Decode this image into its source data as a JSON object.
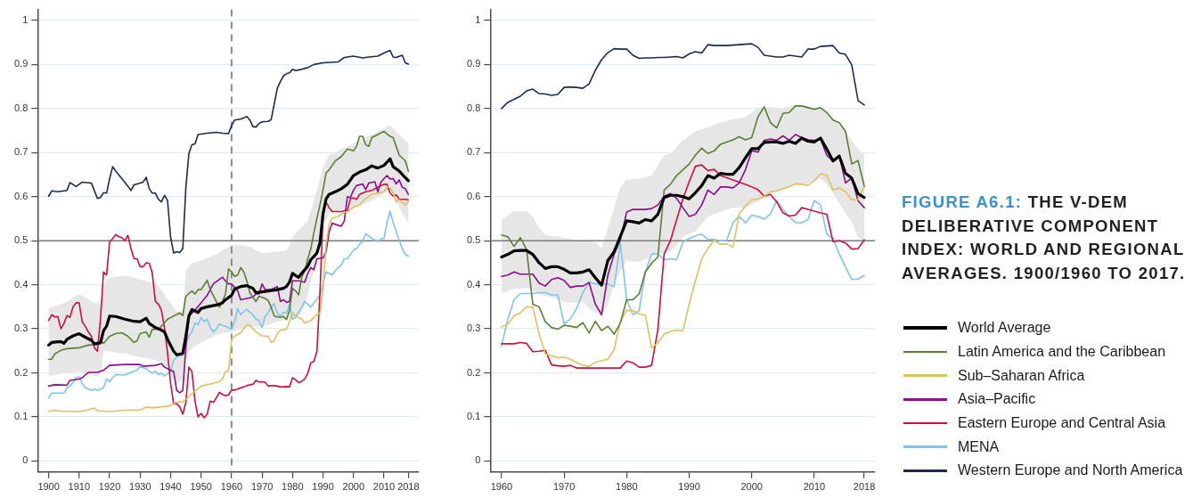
{
  "chart_data": [
    {
      "type": "line",
      "legend": "right",
      "xlim": [
        1896.4,
        2021.4
      ],
      "ylim": [
        -0.025,
        1.025
      ],
      "xticks": [
        1900,
        1910,
        1920,
        1930,
        1940,
        1950,
        1960,
        1970,
        1980,
        1990,
        2000,
        2010,
        2018
      ],
      "yticks": [
        0,
        0.1,
        0.2,
        0.3,
        0.4,
        0.5,
        0.6,
        0.7,
        0.8,
        0.9,
        1
      ],
      "grid": "y",
      "ref_lines": [
        {
          "axis": "y",
          "value": 0.5,
          "color": "#7a7a7a"
        },
        {
          "axis": "x",
          "value": 1960,
          "color": "#8a8a8a",
          "line_style": "dashed"
        }
      ],
      "series": [
        {
          "name": "World Average",
          "color": "#000000",
          "x": [
            1900,
            1901,
            1904,
            1905,
            1906,
            1908,
            1910,
            1912,
            1914,
            1915,
            1917,
            1918,
            1919,
            1920,
            1922,
            1925,
            1928,
            1930,
            1932,
            1933,
            1935,
            1937,
            1938,
            1939,
            1941,
            1942,
            1944,
            1945,
            1946,
            1947,
            1949,
            1950,
            1952,
            1955,
            1957,
            1958,
            1960,
            1961,
            1963,
            1965,
            1967,
            1968,
            1970,
            1972,
            1975,
            1977,
            1978,
            1979,
            1980,
            1981,
            1982,
            1983,
            1985,
            1986,
            1988,
            1989,
            1990,
            1991,
            1992,
            1994,
            1996,
            1998,
            2000,
            2002,
            2004,
            2006,
            2007,
            2008,
            2010,
            2012,
            2013,
            2015,
            2017,
            2018
          ],
          "values": [
            0.263,
            0.269,
            0.271,
            0.267,
            0.276,
            0.284,
            0.289,
            0.281,
            0.274,
            0.266,
            0.268,
            0.296,
            0.306,
            0.329,
            0.328,
            0.322,
            0.317,
            0.316,
            0.324,
            0.312,
            0.303,
            0.297,
            0.293,
            0.276,
            0.249,
            0.241,
            0.244,
            0.283,
            0.329,
            0.344,
            0.337,
            0.346,
            0.35,
            0.354,
            0.359,
            0.366,
            0.376,
            0.39,
            0.396,
            0.398,
            0.392,
            0.382,
            0.384,
            0.386,
            0.389,
            0.392,
            0.396,
            0.406,
            0.426,
            0.421,
            0.417,
            0.426,
            0.442,
            0.457,
            0.472,
            0.495,
            0.561,
            0.595,
            0.605,
            0.611,
            0.618,
            0.628,
            0.648,
            0.656,
            0.661,
            0.67,
            0.667,
            0.665,
            0.671,
            0.686,
            0.668,
            0.658,
            0.643,
            0.636
          ],
          "upper": [
            0.346,
            0.349,
            0.356,
            0.359,
            0.363,
            0.371,
            0.379,
            0.371,
            0.363,
            0.359,
            0.359,
            0.402,
            0.409,
            0.416,
            0.418,
            0.421,
            0.416,
            0.412,
            0.409,
            0.407,
            0.404,
            0.389,
            0.378,
            0.367,
            0.348,
            0.339,
            0.341,
            0.429,
            0.44,
            0.449,
            0.453,
            0.455,
            0.461,
            0.469,
            0.478,
            0.482,
            0.49,
            0.49,
            0.49,
            0.489,
            0.482,
            0.478,
            0.472,
            0.473,
            0.475,
            0.476,
            0.477,
            0.49,
            0.51,
            0.517,
            0.524,
            0.531,
            0.545,
            0.568,
            0.615,
            0.64,
            0.668,
            0.681,
            0.694,
            0.7,
            0.708,
            0.714,
            0.721,
            0.728,
            0.735,
            0.741,
            0.744,
            0.748,
            0.754,
            0.762,
            0.755,
            0.741,
            0.728,
            0.721
          ],
          "lower": [
            0.193,
            0.194,
            0.198,
            0.199,
            0.2,
            0.202,
            0.203,
            0.199,
            0.195,
            0.193,
            0.193,
            0.249,
            0.249,
            0.248,
            0.246,
            0.244,
            0.239,
            0.236,
            0.233,
            0.232,
            0.229,
            0.222,
            0.219,
            0.211,
            0.19,
            0.176,
            0.186,
            0.236,
            0.246,
            0.256,
            0.265,
            0.269,
            0.276,
            0.286,
            0.29,
            0.291,
            0.293,
            0.295,
            0.299,
            0.303,
            0.304,
            0.305,
            0.306,
            0.31,
            0.316,
            0.32,
            0.322,
            0.324,
            0.326,
            0.329,
            0.333,
            0.336,
            0.376,
            0.406,
            0.46,
            0.49,
            0.531,
            0.546,
            0.561,
            0.566,
            0.569,
            0.572,
            0.575,
            0.58,
            0.585,
            0.591,
            0.595,
            0.6,
            0.608,
            0.615,
            0.602,
            0.575,
            0.55,
            0.541
          ]
        },
        {
          "name": "Latin America and the Caribbean",
          "color": "#5b7f35",
          "x": [
            1900,
            1901,
            1902,
            1904,
            1906,
            1910,
            1913,
            1916,
            1917,
            1918,
            1920,
            1922,
            1924,
            1926,
            1928,
            1929,
            1930,
            1932,
            1933,
            1934,
            1936,
            1937,
            1939,
            1941,
            1943,
            1944,
            1945,
            1947,
            1948,
            1949,
            1950,
            1952,
            1953,
            1955,
            1956,
            1957,
            1958,
            1959,
            1960,
            1961,
            1962,
            1963,
            1964,
            1965,
            1966,
            1968,
            1969,
            1971,
            1972,
            1973,
            1974,
            1976,
            1977,
            1978,
            1979,
            1980,
            1981,
            1982,
            1983,
            1984,
            1985,
            1986,
            1987,
            1988,
            1989,
            1990,
            1991,
            1992,
            1994,
            1996,
            1998,
            2000,
            2001,
            2002,
            2003,
            2004,
            2005,
            2006,
            2008,
            2010,
            2012,
            2013,
            2014,
            2015,
            2016,
            2017,
            2018
          ],
          "values": [
            0.231,
            0.231,
            0.243,
            0.251,
            0.255,
            0.257,
            0.263,
            0.264,
            0.273,
            0.267,
            0.283,
            0.289,
            0.291,
            0.283,
            0.269,
            0.273,
            0.289,
            0.293,
            0.281,
            0.299,
            0.299,
            0.306,
            0.322,
            0.329,
            0.336,
            0.33,
            0.374,
            0.386,
            0.379,
            0.389,
            0.389,
            0.41,
            0.389,
            0.362,
            0.349,
            0.362,
            0.379,
            0.436,
            0.429,
            0.419,
            0.422,
            0.439,
            0.429,
            0.409,
            0.382,
            0.362,
            0.374,
            0.369,
            0.364,
            0.349,
            0.329,
            0.326,
            0.328,
            0.321,
            0.342,
            0.392,
            0.386,
            0.377,
            0.416,
            0.432,
            0.459,
            0.482,
            0.518,
            0.551,
            0.581,
            0.615,
            0.654,
            0.661,
            0.681,
            0.691,
            0.708,
            0.704,
            0.714,
            0.737,
            0.737,
            0.718,
            0.714,
            0.734,
            0.741,
            0.748,
            0.737,
            0.734,
            0.714,
            0.694,
            0.688,
            0.681,
            0.658
          ]
        },
        {
          "name": "Sub–Saharan Africa",
          "color": "#e0c05c",
          "x": [
            1900,
            1902,
            1904,
            1910,
            1913,
            1915,
            1916,
            1920,
            1925,
            1930,
            1932,
            1935,
            1937,
            1939,
            1940,
            1941,
            1943,
            1944,
            1945,
            1947,
            1950,
            1953,
            1956,
            1957,
            1958,
            1959,
            1960,
            1961,
            1963,
            1965,
            1966,
            1968,
            1970,
            1972,
            1973,
            1974,
            1975,
            1976,
            1978,
            1979,
            1980,
            1981,
            1983,
            1984,
            1986,
            1988,
            1989,
            1990,
            1991,
            1992,
            1993,
            1995,
            1997,
            1998,
            2000,
            2002,
            2004,
            2006,
            2008,
            2010,
            2011,
            2012,
            2013,
            2014,
            2015,
            2017,
            2018
          ],
          "values": [
            0.112,
            0.115,
            0.113,
            0.112,
            0.116,
            0.12,
            0.114,
            0.112,
            0.115,
            0.116,
            0.122,
            0.121,
            0.123,
            0.124,
            0.126,
            0.131,
            0.135,
            0.134,
            0.14,
            0.153,
            0.17,
            0.175,
            0.18,
            0.186,
            0.203,
            0.204,
            0.276,
            0.283,
            0.291,
            0.309,
            0.308,
            0.293,
            0.284,
            0.283,
            0.269,
            0.273,
            0.289,
            0.297,
            0.299,
            0.316,
            0.336,
            0.329,
            0.322,
            0.313,
            0.319,
            0.332,
            0.336,
            0.389,
            0.489,
            0.538,
            0.551,
            0.555,
            0.565,
            0.565,
            0.576,
            0.581,
            0.596,
            0.605,
            0.608,
            0.611,
            0.623,
            0.62,
            0.608,
            0.588,
            0.593,
            0.581,
            0.591
          ]
        },
        {
          "name": "Asia–Pacific",
          "color": "#8b0d8b",
          "x": [
            1900,
            1902,
            1906,
            1907,
            1910,
            1911,
            1913,
            1916,
            1918,
            1920,
            1925,
            1930,
            1931,
            1935,
            1937,
            1938,
            1940,
            1941,
            1942,
            1943,
            1944,
            1945,
            1946,
            1948,
            1950,
            1952,
            1954,
            1956,
            1957,
            1958,
            1959,
            1960,
            1962,
            1963,
            1965,
            1967,
            1968,
            1969,
            1970,
            1971,
            1973,
            1975,
            1976,
            1977,
            1978,
            1979,
            1980,
            1982,
            1984,
            1985,
            1986,
            1987,
            1988,
            1990,
            1991,
            1992,
            1993,
            1995,
            1996,
            1997,
            1998,
            1999,
            2000,
            2001,
            2003,
            2004,
            2005,
            2007,
            2008,
            2009,
            2010,
            2011,
            2012,
            2013,
            2014,
            2015,
            2016,
            2017,
            2018
          ],
          "values": [
            0.17,
            0.173,
            0.172,
            0.183,
            0.186,
            0.189,
            0.201,
            0.201,
            0.206,
            0.217,
            0.219,
            0.219,
            0.215,
            0.217,
            0.221,
            0.213,
            0.206,
            0.203,
            0.16,
            0.155,
            0.16,
            0.256,
            0.329,
            0.342,
            0.359,
            0.376,
            0.402,
            0.412,
            0.417,
            0.409,
            0.402,
            0.402,
            0.386,
            0.366,
            0.369,
            0.372,
            0.379,
            0.379,
            0.402,
            0.389,
            0.389,
            0.396,
            0.362,
            0.366,
            0.36,
            0.362,
            0.409,
            0.409,
            0.406,
            0.426,
            0.439,
            0.434,
            0.459,
            0.461,
            0.475,
            0.52,
            0.54,
            0.535,
            0.533,
            0.545,
            0.6,
            0.598,
            0.615,
            0.625,
            0.629,
            0.616,
            0.631,
            0.634,
            0.611,
            0.633,
            0.641,
            0.648,
            0.64,
            0.641,
            0.629,
            0.638,
            0.621,
            0.618,
            0.605
          ]
        },
        {
          "name": "Eastern Europe and Central Asia",
          "color": "#cc0f3c",
          "x": [
            1900,
            1901,
            1902,
            1903,
            1904,
            1905,
            1906,
            1907,
            1908,
            1909,
            1910,
            1911,
            1912,
            1913,
            1914,
            1915,
            1916,
            1917,
            1918,
            1919,
            1920,
            1921,
            1922,
            1923,
            1924,
            1925,
            1926,
            1927,
            1928,
            1929,
            1930,
            1931,
            1932,
            1933,
            1934,
            1935,
            1936,
            1937,
            1938,
            1939,
            1940,
            1941,
            1942,
            1943,
            1944,
            1945,
            1946,
            1947,
            1948,
            1949,
            1950,
            1951,
            1952,
            1953,
            1954,
            1955,
            1956,
            1957,
            1958,
            1959,
            1960,
            1961,
            1962,
            1963,
            1964,
            1965,
            1966,
            1967,
            1968,
            1969,
            1970,
            1971,
            1972,
            1973,
            1974,
            1975,
            1976,
            1977,
            1978,
            1979,
            1980,
            1981,
            1982,
            1983,
            1984,
            1985,
            1986,
            1987,
            1988,
            1989,
            1990,
            1991,
            1992,
            1993,
            1994,
            1995,
            1996,
            1997,
            1998,
            1999,
            2000,
            2001,
            2002,
            2004,
            2006,
            2008,
            2010,
            2011,
            2012,
            2013,
            2014,
            2015,
            2017,
            2018
          ],
          "values": [
            0.319,
            0.332,
            0.327,
            0.328,
            0.3,
            0.312,
            0.33,
            0.326,
            0.35,
            0.359,
            0.359,
            0.316,
            0.306,
            0.293,
            0.283,
            0.257,
            0.249,
            0.322,
            0.429,
            0.422,
            0.497,
            0.505,
            0.514,
            0.509,
            0.507,
            0.5,
            0.512,
            0.482,
            0.459,
            0.459,
            0.441,
            0.441,
            0.45,
            0.449,
            0.426,
            0.362,
            0.356,
            0.342,
            0.302,
            0.246,
            0.176,
            0.13,
            0.13,
            0.123,
            0.106,
            0.133,
            0.213,
            0.203,
            0.136,
            0.1,
            0.108,
            0.098,
            0.106,
            0.136,
            0.133,
            0.143,
            0.156,
            0.151,
            0.148,
            0.15,
            0.161,
            0.161,
            0.163,
            0.166,
            0.168,
            0.171,
            0.173,
            0.174,
            0.183,
            0.179,
            0.18,
            0.179,
            0.17,
            0.171,
            0.171,
            0.17,
            0.168,
            0.168,
            0.169,
            0.168,
            0.189,
            0.184,
            0.178,
            0.181,
            0.186,
            0.199,
            0.223,
            0.226,
            0.249,
            0.382,
            0.56,
            0.588,
            0.575,
            0.566,
            0.566,
            0.566,
            0.566,
            0.568,
            0.569,
            0.596,
            0.597,
            0.594,
            0.605,
            0.611,
            0.614,
            0.622,
            0.628,
            0.628,
            0.608,
            0.601,
            0.604,
            0.594,
            0.594,
            0.593
          ]
        },
        {
          "name": "MENA",
          "color": "#80c3ea",
          "x": [
            1900,
            1901,
            1905,
            1906,
            1907,
            1908,
            1909,
            1910,
            1911,
            1912,
            1914,
            1915,
            1916,
            1917,
            1918,
            1919,
            1920,
            1921,
            1922,
            1925,
            1928,
            1929,
            1930,
            1932,
            1934,
            1935,
            1936,
            1937,
            1938,
            1940,
            1941,
            1942,
            1943,
            1944,
            1945,
            1946,
            1947,
            1948,
            1949,
            1950,
            1951,
            1952,
            1953,
            1954,
            1955,
            1956,
            1958,
            1960,
            1961,
            1962,
            1963,
            1964,
            1965,
            1967,
            1968,
            1969,
            1970,
            1971,
            1972,
            1973,
            1974,
            1975,
            1976,
            1977,
            1978,
            1979,
            1980,
            1981,
            1983,
            1984,
            1986,
            1987,
            1989,
            1990,
            1991,
            1992,
            1993,
            1994,
            1995,
            1996,
            1997,
            1998,
            1999,
            2000,
            2001,
            2002,
            2003,
            2004,
            2006,
            2008,
            2009,
            2010,
            2011,
            2012,
            2013,
            2014,
            2015,
            2016,
            2017,
            2018
          ],
          "values": [
            0.143,
            0.154,
            0.154,
            0.166,
            0.17,
            0.178,
            0.189,
            0.191,
            0.176,
            0.166,
            0.16,
            0.163,
            0.16,
            0.163,
            0.166,
            0.186,
            0.18,
            0.189,
            0.196,
            0.195,
            0.204,
            0.206,
            0.215,
            0.209,
            0.199,
            0.204,
            0.196,
            0.199,
            0.193,
            0.203,
            0.229,
            0.236,
            0.239,
            0.239,
            0.266,
            0.283,
            0.293,
            0.313,
            0.309,
            0.326,
            0.316,
            0.322,
            0.303,
            0.293,
            0.299,
            0.311,
            0.306,
            0.299,
            0.316,
            0.346,
            0.332,
            0.339,
            0.344,
            0.332,
            0.322,
            0.319,
            0.303,
            0.329,
            0.336,
            0.35,
            0.357,
            0.336,
            0.329,
            0.337,
            0.336,
            0.356,
            0.322,
            0.326,
            0.349,
            0.362,
            0.349,
            0.359,
            0.376,
            0.402,
            0.429,
            0.426,
            0.422,
            0.432,
            0.439,
            0.445,
            0.459,
            0.459,
            0.469,
            0.479,
            0.482,
            0.492,
            0.498,
            0.516,
            0.505,
            0.498,
            0.505,
            0.505,
            0.541,
            0.567,
            0.541,
            0.521,
            0.501,
            0.482,
            0.469,
            0.465
          ]
        },
        {
          "name": "Western Europe and North America",
          "color": "#1c2a50",
          "x": [
            1900,
            1901,
            1903,
            1906,
            1907,
            1909,
            1911,
            1914,
            1915,
            1916,
            1917,
            1918,
            1919,
            1920,
            1921,
            1922,
            1924,
            1926,
            1927,
            1928,
            1930,
            1931,
            1932,
            1933,
            1934,
            1935,
            1936,
            1937,
            1938,
            1939,
            1940,
            1941,
            1942,
            1943,
            1944,
            1945,
            1946,
            1947,
            1948,
            1949,
            1952,
            1955,
            1957,
            1959,
            1960,
            1961,
            1963,
            1965,
            1966,
            1967,
            1968,
            1969,
            1970,
            1972,
            1973,
            1975,
            1976,
            1977,
            1978,
            1979,
            1980,
            1981,
            1983,
            1985,
            1987,
            1990,
            1995,
            1997,
            2000,
            2003,
            2005,
            2008,
            2010,
            2012,
            2013,
            2014,
            2016,
            2017,
            2018
          ],
          "values": [
            0.601,
            0.613,
            0.611,
            0.614,
            0.632,
            0.623,
            0.633,
            0.631,
            0.614,
            0.596,
            0.598,
            0.609,
            0.608,
            0.641,
            0.668,
            0.658,
            0.641,
            0.624,
            0.614,
            0.627,
            0.631,
            0.633,
            0.644,
            0.618,
            0.608,
            0.608,
            0.594,
            0.588,
            0.603,
            0.591,
            0.508,
            0.472,
            0.475,
            0.473,
            0.482,
            0.62,
            0.698,
            0.718,
            0.72,
            0.741,
            0.744,
            0.746,
            0.744,
            0.743,
            0.761,
            0.774,
            0.776,
            0.782,
            0.774,
            0.759,
            0.758,
            0.766,
            0.77,
            0.771,
            0.775,
            0.846,
            0.861,
            0.874,
            0.879,
            0.881,
            0.889,
            0.886,
            0.889,
            0.893,
            0.9,
            0.904,
            0.906,
            0.916,
            0.919,
            0.915,
            0.917,
            0.919,
            0.926,
            0.932,
            0.917,
            0.916,
            0.921,
            0.904,
            0.901
          ]
        }
      ]
    },
    {
      "type": "line",
      "annotations": [
        "FIGURE A6.1: THE V-DEM DELIBERATIVE COMPONENT INDEX: WORLD AND REGIONAL AVERAGES. 1900/1960 TO 2017."
      ],
      "legend": "right",
      "xlim": [
        1958.2,
        2019.7
      ],
      "ylim": [
        -0.025,
        1.025
      ],
      "xticks": [
        1960,
        1970,
        1980,
        1990,
        2000,
        2010,
        2018
      ],
      "yticks": [
        0,
        0.1,
        0.2,
        0.3,
        0.4,
        0.5,
        0.6,
        0.7,
        0.8,
        0.9,
        1
      ],
      "grid": "y",
      "ref_lines": [
        {
          "axis": "y",
          "value": 0.5,
          "color": "#7a7a7a"
        }
      ],
      "x": [
        1960,
        1961,
        1962,
        1963,
        1964,
        1965,
        1966,
        1967,
        1968,
        1969,
        1970,
        1971,
        1972,
        1973,
        1974,
        1975,
        1976,
        1977,
        1978,
        1979,
        1980,
        1981,
        1982,
        1983,
        1984,
        1985,
        1986,
        1987,
        1988,
        1989,
        1990,
        1991,
        1992,
        1993,
        1994,
        1995,
        1996,
        1997,
        1998,
        1999,
        2000,
        2001,
        2002,
        2003,
        2004,
        2005,
        2006,
        2007,
        2008,
        2009,
        2010,
        2011,
        2012,
        2013,
        2014,
        2015,
        2016,
        2017,
        2018
      ],
      "series": [
        {
          "name": "World Average",
          "color": "#000000",
          "values": [
            0.463,
            0.469,
            0.477,
            0.478,
            0.478,
            0.469,
            0.45,
            0.437,
            0.441,
            0.441,
            0.435,
            0.427,
            0.427,
            0.429,
            0.434,
            0.416,
            0.399,
            0.455,
            0.475,
            0.51,
            0.545,
            0.543,
            0.54,
            0.548,
            0.545,
            0.56,
            0.598,
            0.603,
            0.603,
            0.6,
            0.595,
            0.609,
            0.625,
            0.648,
            0.642,
            0.653,
            0.651,
            0.651,
            0.666,
            0.688,
            0.709,
            0.709,
            0.723,
            0.724,
            0.724,
            0.721,
            0.726,
            0.721,
            0.733,
            0.726,
            0.724,
            0.733,
            0.708,
            0.681,
            0.692,
            0.653,
            0.642,
            0.607,
            0.598
          ],
          "upper": [
            0.548,
            0.558,
            0.567,
            0.567,
            0.567,
            0.555,
            0.529,
            0.513,
            0.511,
            0.51,
            0.507,
            0.505,
            0.498,
            0.501,
            0.499,
            0.497,
            0.483,
            0.528,
            0.575,
            0.621,
            0.638,
            0.64,
            0.641,
            0.645,
            0.648,
            0.671,
            0.694,
            0.698,
            0.713,
            0.728,
            0.738,
            0.748,
            0.753,
            0.758,
            0.763,
            0.769,
            0.772,
            0.776,
            0.778,
            0.781,
            0.791,
            0.801,
            0.802,
            0.803,
            0.802,
            0.801,
            0.805,
            0.808,
            0.807,
            0.806,
            0.803,
            0.801,
            0.791,
            0.778,
            0.763,
            0.748,
            0.728,
            0.708,
            0.694
          ],
          "lower": [
            0.381,
            0.386,
            0.39,
            0.391,
            0.392,
            0.386,
            0.379,
            0.375,
            0.372,
            0.367,
            0.362,
            0.359,
            0.36,
            0.362,
            0.346,
            0.337,
            0.328,
            0.356,
            0.402,
            0.429,
            0.455,
            0.453,
            0.452,
            0.458,
            0.465,
            0.469,
            0.472,
            0.475,
            0.49,
            0.508,
            0.515,
            0.521,
            0.538,
            0.555,
            0.56,
            0.565,
            0.57,
            0.575,
            0.575,
            0.575,
            0.582,
            0.588,
            0.598,
            0.608,
            0.611,
            0.615,
            0.621,
            0.627,
            0.629,
            0.631,
            0.636,
            0.641,
            0.628,
            0.608,
            0.585,
            0.561,
            0.541,
            0.508,
            0.5
          ]
        },
        {
          "name": "Latin America and the Caribbean",
          "color": "#5b7f35",
          "values": [
            0.513,
            0.509,
            0.487,
            0.507,
            0.48,
            0.356,
            0.35,
            0.316,
            0.303,
            0.299,
            0.308,
            0.306,
            0.303,
            0.314,
            0.291,
            0.317,
            0.296,
            0.306,
            0.288,
            0.313,
            0.366,
            0.366,
            0.379,
            0.429,
            0.449,
            0.463,
            0.615,
            0.628,
            0.648,
            0.661,
            0.674,
            0.694,
            0.71,
            0.698,
            0.704,
            0.719,
            0.724,
            0.729,
            0.736,
            0.729,
            0.734,
            0.781,
            0.804,
            0.768,
            0.756,
            0.789,
            0.791,
            0.806,
            0.806,
            0.802,
            0.798,
            0.802,
            0.791,
            0.774,
            0.768,
            0.748,
            0.674,
            0.682,
            0.624
          ]
        },
        {
          "name": "Sub–Saharan Africa",
          "color": "#e0c05c",
          "values": [
            0.304,
            0.311,
            0.329,
            0.336,
            0.35,
            0.349,
            0.289,
            0.243,
            0.239,
            0.234,
            0.236,
            0.231,
            0.224,
            0.217,
            0.215,
            0.224,
            0.228,
            0.231,
            0.253,
            0.316,
            0.342,
            0.341,
            0.334,
            0.331,
            0.257,
            0.268,
            0.288,
            0.294,
            0.297,
            0.295,
            0.356,
            0.409,
            0.459,
            0.482,
            0.501,
            0.492,
            0.493,
            0.485,
            0.561,
            0.579,
            0.593,
            0.595,
            0.601,
            0.611,
            0.613,
            0.618,
            0.623,
            0.629,
            0.628,
            0.626,
            0.636,
            0.652,
            0.649,
            0.615,
            0.62,
            0.611,
            0.593,
            0.593,
            0.623
          ]
        },
        {
          "name": "Asia–Pacific",
          "color": "#8b0d8b",
          "values": [
            0.419,
            0.422,
            0.429,
            0.424,
            0.424,
            0.424,
            0.404,
            0.397,
            0.412,
            0.416,
            0.41,
            0.394,
            0.397,
            0.397,
            0.405,
            0.356,
            0.332,
            0.422,
            0.469,
            0.502,
            0.565,
            0.571,
            0.571,
            0.571,
            0.573,
            0.581,
            0.601,
            0.607,
            0.596,
            0.575,
            0.555,
            0.56,
            0.581,
            0.615,
            0.605,
            0.622,
            0.622,
            0.62,
            0.631,
            0.661,
            0.704,
            0.701,
            0.728,
            0.731,
            0.728,
            0.738,
            0.728,
            0.741,
            0.734,
            0.729,
            0.728,
            0.731,
            0.694,
            0.681,
            0.694,
            0.631,
            0.642,
            0.591,
            0.575
          ]
        },
        {
          "name": "Eastern Europe and Central Asia",
          "color": "#cc0f3c",
          "values": [
            0.266,
            0.266,
            0.266,
            0.269,
            0.267,
            0.248,
            0.249,
            0.251,
            0.218,
            0.216,
            0.215,
            0.217,
            0.211,
            0.211,
            0.211,
            0.211,
            0.211,
            0.211,
            0.211,
            0.211,
            0.227,
            0.223,
            0.213,
            0.213,
            0.217,
            0.299,
            0.47,
            0.5,
            0.548,
            0.595,
            0.634,
            0.669,
            0.672,
            0.659,
            0.662,
            0.648,
            0.643,
            0.638,
            0.633,
            0.628,
            0.622,
            0.616,
            0.601,
            0.605,
            0.588,
            0.563,
            0.556,
            0.558,
            0.575,
            0.571,
            0.567,
            0.563,
            0.56,
            0.498,
            0.5,
            0.495,
            0.481,
            0.482,
            0.502
          ]
        },
        {
          "name": "MENA",
          "color": "#80c3ea",
          "values": [
            0.261,
            0.322,
            0.366,
            0.38,
            0.38,
            0.38,
            0.382,
            0.382,
            0.377,
            0.377,
            0.311,
            0.322,
            0.346,
            0.382,
            0.406,
            0.402,
            0.401,
            0.402,
            0.396,
            0.495,
            0.366,
            0.332,
            0.341,
            0.429,
            0.47,
            0.47,
            0.457,
            0.459,
            0.457,
            0.497,
            0.505,
            0.511,
            0.515,
            0.503,
            0.503,
            0.5,
            0.501,
            0.541,
            0.555,
            0.541,
            0.558,
            0.555,
            0.549,
            0.561,
            0.591,
            0.571,
            0.555,
            0.541,
            0.541,
            0.548,
            0.591,
            0.581,
            0.515,
            0.505,
            0.47,
            0.44,
            0.412,
            0.413,
            0.421
          ]
        },
        {
          "name": "Western Europe and North America",
          "color": "#1c2a50",
          "values": [
            0.8,
            0.814,
            0.821,
            0.828,
            0.84,
            0.844,
            0.834,
            0.833,
            0.83,
            0.832,
            0.848,
            0.849,
            0.848,
            0.846,
            0.856,
            0.887,
            0.911,
            0.927,
            0.936,
            0.935,
            0.935,
            0.921,
            0.914,
            0.915,
            0.915,
            0.916,
            0.916,
            0.917,
            0.918,
            0.915,
            0.924,
            0.929,
            0.926,
            0.945,
            0.943,
            0.943,
            0.943,
            0.944,
            0.945,
            0.946,
            0.947,
            0.939,
            0.921,
            0.919,
            0.917,
            0.917,
            0.921,
            0.919,
            0.917,
            0.935,
            0.935,
            0.941,
            0.942,
            0.943,
            0.926,
            0.923,
            0.899,
            0.818,
            0.808
          ]
        }
      ]
    }
  ]
}
